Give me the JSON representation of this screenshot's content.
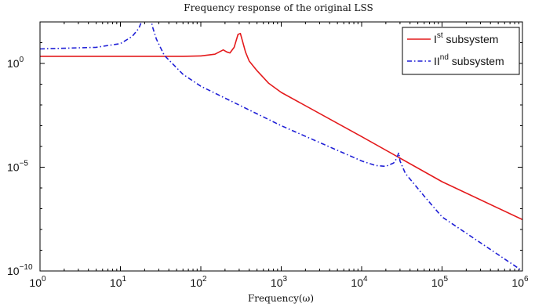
{
  "chart_data": {
    "type": "line",
    "title": "Frequency response of the original LSS",
    "xlabel": "Frequency(ω)",
    "ylabel": "",
    "x_scale": "log",
    "y_scale": "log",
    "xlim": [
      1,
      1000000
    ],
    "ylim": [
      1e-10,
      100.0
    ],
    "grid": false,
    "legend_position": "top-right",
    "x_ticks": [
      {
        "value": 1,
        "base": "10",
        "exp": "0"
      },
      {
        "value": 10,
        "base": "10",
        "exp": "1"
      },
      {
        "value": 100,
        "base": "10",
        "exp": "2"
      },
      {
        "value": 1000,
        "base": "10",
        "exp": "3"
      },
      {
        "value": 10000,
        "base": "10",
        "exp": "4"
      },
      {
        "value": 100000,
        "base": "10",
        "exp": "5"
      },
      {
        "value": 1000000,
        "base": "10",
        "exp": "6"
      }
    ],
    "y_ticks": [
      {
        "value": 1,
        "base": "10",
        "exp": "0"
      },
      {
        "value": 1e-05,
        "base": "10",
        "exp": "−5"
      },
      {
        "value": 1e-10,
        "base": "10",
        "exp": "−10"
      }
    ],
    "series": [
      {
        "name_base": "I",
        "name_sup": "st",
        "name_rest": " subsystem",
        "color": "#e41a1c",
        "dash": "solid",
        "x": [
          1,
          10,
          60,
          100,
          150,
          190,
          210,
          230,
          260,
          290,
          310,
          330,
          360,
          400,
          500,
          700,
          1000,
          10000,
          100000,
          1000000
        ],
        "y": [
          2.2,
          2.2,
          2.2,
          2.3,
          2.8,
          4.5,
          3.6,
          3.2,
          6,
          25,
          28,
          12,
          3.5,
          1.3,
          0.45,
          0.11,
          0.04,
          0.0003,
          2e-06,
          3e-08
        ]
      },
      {
        "name_base": "II",
        "name_sup": "nd",
        "name_rest": " subsystem",
        "color": "#1f1fd6",
        "dash": "dashdot",
        "x": [
          1,
          5,
          10,
          14,
          17,
          19,
          21,
          23,
          25,
          28,
          35,
          60,
          100,
          1000,
          10000,
          15000,
          20000,
          25000,
          27000,
          29000,
          30000,
          35000,
          60000,
          100000,
          1000000
        ],
        "y": [
          5,
          6,
          9,
          20,
          50,
          150,
          500,
          300,
          60,
          15,
          2.5,
          0.3,
          0.08,
          0.001,
          2e-05,
          1.2e-05,
          1.1e-05,
          1.6e-05,
          2.5e-05,
          5e-05,
          2e-05,
          5e-06,
          4e-07,
          4e-08,
          1e-10
        ]
      }
    ]
  }
}
